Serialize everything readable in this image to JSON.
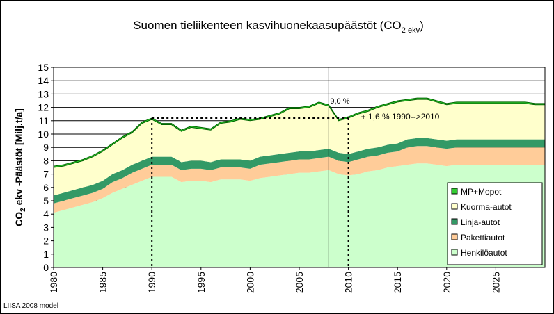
{
  "chart_data": {
    "type": "stacked-area",
    "title": "Suomen tieliikenteen kasvihuonekaasupäästöt (CO",
    "title_sub": "2 ekv",
    "title_end": ")",
    "y_label": "CO",
    "y_label_sub": "2",
    "y_label_end": " ekv -Päästöt [Milj.t/a]",
    "footer": "LIISA 2008 model",
    "x": [
      1980,
      1981,
      1982,
      1983,
      1984,
      1985,
      1986,
      1987,
      1988,
      1989,
      1990,
      1991,
      1992,
      1993,
      1994,
      1995,
      1996,
      1997,
      1998,
      1999,
      2000,
      2001,
      2002,
      2003,
      2004,
      2005,
      2006,
      2007,
      2008,
      2009,
      2010,
      2011,
      2012,
      2013,
      2014,
      2015,
      2016,
      2017,
      2018,
      2019,
      2020,
      2021,
      2022,
      2023,
      2024,
      2025,
      2026,
      2027,
      2028,
      2029,
      2030
    ],
    "series": [
      {
        "name": "Henkilöautot",
        "color": "#ccffcc",
        "values": [
          4.1,
          4.3,
          4.5,
          4.7,
          4.9,
          5.2,
          5.6,
          5.9,
          6.2,
          6.5,
          6.8,
          6.8,
          6.8,
          6.4,
          6.5,
          6.5,
          6.4,
          6.6,
          6.6,
          6.6,
          6.5,
          6.7,
          6.8,
          6.9,
          7.0,
          7.1,
          7.1,
          7.2,
          7.3,
          7.0,
          6.9,
          7.0,
          7.2,
          7.3,
          7.5,
          7.6,
          7.7,
          7.8,
          7.8,
          7.7,
          7.6,
          7.7,
          7.7,
          7.7,
          7.7,
          7.7,
          7.7,
          7.7,
          7.7,
          7.7,
          7.7
        ]
      },
      {
        "name": "Pakettiautot",
        "color": "#ffcc99",
        "values": [
          0.7,
          0.7,
          0.7,
          0.7,
          0.7,
          0.7,
          0.8,
          0.8,
          0.9,
          0.9,
          0.9,
          0.9,
          0.9,
          0.9,
          0.9,
          0.9,
          0.9,
          0.9,
          0.9,
          0.9,
          0.9,
          1.0,
          1.0,
          1.0,
          1.0,
          1.0,
          1.0,
          1.0,
          1.0,
          1.0,
          1.0,
          1.1,
          1.1,
          1.1,
          1.1,
          1.1,
          1.3,
          1.3,
          1.3,
          1.3,
          1.3,
          1.3,
          1.3,
          1.3,
          1.3,
          1.3,
          1.3,
          1.3,
          1.3,
          1.3,
          1.3
        ]
      },
      {
        "name": "Linja-autot",
        "color": "#339966",
        "values": [
          0.6,
          0.6,
          0.6,
          0.6,
          0.6,
          0.6,
          0.6,
          0.6,
          0.6,
          0.6,
          0.6,
          0.6,
          0.6,
          0.6,
          0.6,
          0.6,
          0.6,
          0.6,
          0.6,
          0.6,
          0.6,
          0.6,
          0.6,
          0.6,
          0.6,
          0.6,
          0.6,
          0.6,
          0.6,
          0.6,
          0.6,
          0.6,
          0.6,
          0.6,
          0.6,
          0.6,
          0.6,
          0.6,
          0.6,
          0.6,
          0.6,
          0.6,
          0.6,
          0.6,
          0.6,
          0.6,
          0.6,
          0.6,
          0.6,
          0.6,
          0.6
        ]
      },
      {
        "name": "Kuorma-autot",
        "color": "#ffffcc",
        "values": [
          2.1,
          2.0,
          2.0,
          2.0,
          2.1,
          2.2,
          2.2,
          2.4,
          2.4,
          2.8,
          2.8,
          2.4,
          2.4,
          2.3,
          2.5,
          2.4,
          2.4,
          2.7,
          2.8,
          3.0,
          3.0,
          2.8,
          2.9,
          3.0,
          3.3,
          3.2,
          3.3,
          3.5,
          3.2,
          2.4,
          2.7,
          2.8,
          2.8,
          3.0,
          3.0,
          3.1,
          2.9,
          2.9,
          2.9,
          2.8,
          2.7,
          2.7,
          2.7,
          2.7,
          2.7,
          2.7,
          2.7,
          2.7,
          2.7,
          2.6,
          2.6
        ]
      },
      {
        "name": "MP+Mopot",
        "color": "#33cc33",
        "values": [
          0.1,
          0.1,
          0.1,
          0.1,
          0.1,
          0.1,
          0.1,
          0.1,
          0.1,
          0.1,
          0.1,
          0.1,
          0.1,
          0.1,
          0.1,
          0.1,
          0.1,
          0.1,
          0.1,
          0.1,
          0.1,
          0.1,
          0.1,
          0.1,
          0.1,
          0.1,
          0.1,
          0.1,
          0.1,
          0.1,
          0.1,
          0.1,
          0.1,
          0.1,
          0.1,
          0.1,
          0.1,
          0.1,
          0.1,
          0.1,
          0.1,
          0.1,
          0.1,
          0.1,
          0.1,
          0.1,
          0.1,
          0.1,
          0.1,
          0.1,
          0.1
        ]
      }
    ],
    "xlim": [
      1980,
      2030
    ],
    "xticks": [
      1980,
      1985,
      1990,
      1995,
      2000,
      2005,
      2010,
      2015,
      2020,
      2025
    ],
    "ylim": [
      0,
      15
    ],
    "yticks": [
      0,
      1,
      2,
      3,
      4,
      5,
      6,
      7,
      8,
      9,
      10,
      11,
      12,
      13,
      14,
      15
    ],
    "grid": true,
    "legend": "bottom-right",
    "forecast_start": 2008,
    "forecast_label": "9,0 %",
    "comparison_years": [
      1990,
      2010
    ],
    "comparison_level": 11.2,
    "comparison_label": "+ 1,6 %  1990-->2010"
  }
}
